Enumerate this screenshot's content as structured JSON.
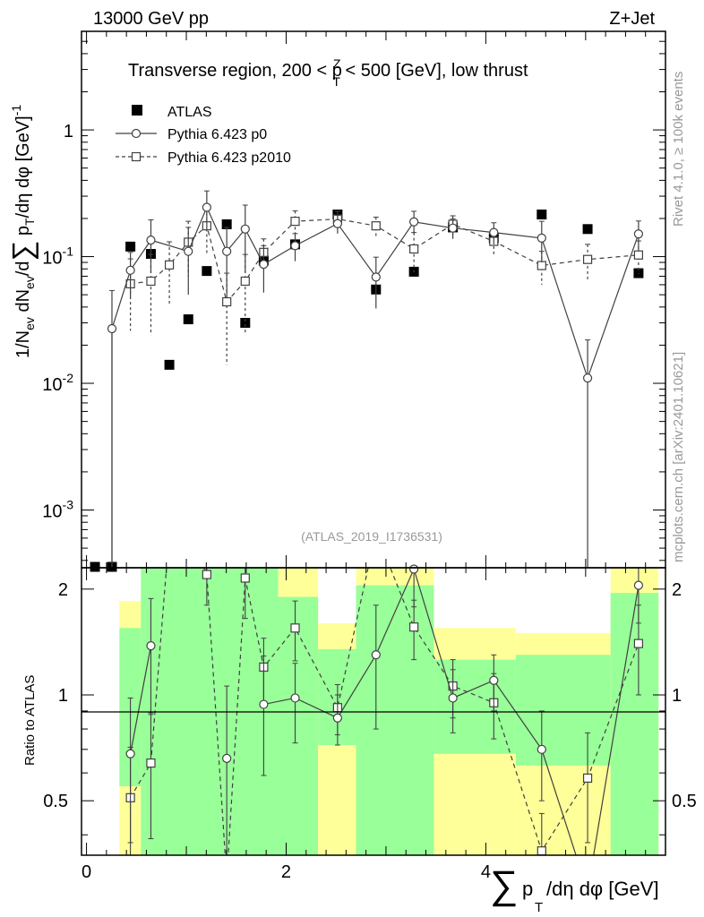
{
  "header": {
    "energy": "13000 GeV pp",
    "process": "Z+Jet"
  },
  "side": {
    "rivet": "Rivet 4.1.0, ≥ 100k events",
    "source": "mcplots.cern.ch [arXiv:2401.10621]"
  },
  "chart_data": {
    "type": "scatter",
    "title": "Transverse region, 200 < pTZ < 500 [GeV], low thrust",
    "title_parts": {
      "before": "Transverse region, 200 < p",
      "sup": "Z",
      "sub": "T",
      "after": " < 500 [GeV], low thrust"
    },
    "analysis_id": "(ATLAS_2019_I1736531)",
    "xlabel": "∑ pT/dη dφ [GeV]",
    "xlabel_parts": {
      "sum": "∑",
      "p": "p",
      "sub": "T",
      "rest": "/dη dφ [GeV]"
    },
    "ylabel": "1/Nev dNev/d ∑ pT/dη dφ [GeV]^-1",
    "ylabel_parts": {
      "a": "1/N",
      "ev": "ev",
      "b": " dN",
      "c": "/d",
      "sum": "∑",
      "p": " p",
      "d": "/dη dφ  [GeV]",
      "sup": "-1"
    },
    "ratio_ylabel": "Ratio to ATLAS",
    "xlim": [
      -0.05,
      5.8
    ],
    "ylim": [
      0.00035,
      6.0
    ],
    "ratio_ylim": [
      0.35,
      2.3
    ],
    "x_ticks": [
      "0",
      "2",
      "4"
    ],
    "y_ticks": [
      {
        "base": "10",
        "exp": "-3"
      },
      {
        "base": "10",
        "exp": "-2"
      },
      {
        "base": "10",
        "exp": "-1"
      },
      {
        "base": "1",
        "exp": ""
      }
    ],
    "ratio_ticks": [
      "0.5",
      "1",
      "2"
    ],
    "legend": [
      "ATLAS",
      "Pythia 6.423 p0",
      "Pythia 6.423 p2010"
    ],
    "legend_position": "top-left",
    "series": [
      {
        "name": "ATLAS",
        "marker": "filled-square",
        "x": [
          0.085,
          0.255,
          0.44,
          0.645,
          0.83,
          1.02,
          1.205,
          1.405,
          1.59,
          1.775,
          2.09,
          2.515,
          2.9,
          3.28,
          3.67,
          4.08,
          4.56,
          5.02,
          5.53
        ],
        "y": [
          0.0003,
          0.0003,
          0.12,
          0.105,
          0.014,
          0.032,
          0.077,
          0.18,
          0.03,
          0.093,
          0.125,
          0.215,
          0.055,
          0.076,
          0.17,
          0.14,
          0.215,
          0.165,
          0.074
        ]
      },
      {
        "name": "Pythia 6.423 p0",
        "marker": "open-circle",
        "line": "solid",
        "x": [
          0.255,
          0.44,
          0.645,
          1.02,
          1.205,
          1.405,
          1.59,
          1.775,
          2.09,
          2.515,
          2.9,
          3.28,
          3.67,
          4.08,
          4.56,
          5.02,
          5.53
        ],
        "y": [
          0.027,
          0.078,
          0.135,
          0.11,
          0.245,
          0.11,
          0.165,
          0.087,
          0.122,
          0.182,
          0.069,
          0.188,
          0.168,
          0.155,
          0.14,
          0.011,
          0.151
        ],
        "err": [
          0.027,
          0.03,
          0.06,
          0.06,
          0.085,
          0.06,
          0.09,
          0.035,
          0.03,
          0.03,
          0.03,
          0.04,
          0.03,
          0.03,
          0.05,
          0.011,
          0.04
        ],
        "ratio": [
          null,
          0.68,
          1.38,
          null,
          null,
          0.66,
          null,
          0.94,
          0.98,
          0.86,
          1.3,
          2.28,
          0.98,
          1.1,
          0.7,
          0.07,
          2.05
        ],
        "ratio_err": [
          null,
          0.3,
          0.5,
          null,
          null,
          0.4,
          null,
          0.35,
          0.25,
          0.14,
          0.5,
          0.5,
          0.2,
          0.2,
          0.2,
          0.1,
          0.45
        ]
      },
      {
        "name": "Pythia 6.423 p2010",
        "marker": "open-square",
        "line": "dashed",
        "x": [
          0.44,
          0.645,
          0.83,
          1.02,
          1.205,
          1.405,
          1.59,
          1.775,
          2.09,
          2.515,
          2.9,
          3.28,
          3.67,
          4.08,
          4.56,
          5.02,
          5.53
        ],
        "y": [
          0.061,
          0.064,
          0.086,
          0.13,
          0.175,
          0.044,
          0.064,
          0.108,
          0.19,
          0.198,
          0.175,
          0.115,
          0.18,
          0.132,
          0.085,
          0.095,
          0.103
        ],
        "err": [
          0.035,
          0.04,
          0.045,
          0.06,
          0.07,
          0.03,
          0.04,
          0.03,
          0.04,
          0.03,
          0.03,
          0.04,
          0.03,
          0.03,
          0.025,
          0.03,
          0.03
        ],
        "ratio": [
          0.51,
          0.64,
          3.5,
          3.0,
          2.2,
          0.3,
          2.15,
          1.2,
          1.55,
          0.92,
          3.2,
          1.56,
          1.06,
          0.95,
          0.36,
          0.58,
          1.4
        ],
        "ratio_err": [
          0.2,
          0.25,
          0.5,
          0.5,
          0.4,
          0.2,
          0.5,
          0.25,
          0.3,
          0.15,
          0.5,
          0.3,
          0.2,
          0.2,
          0.1,
          0.2,
          0.4
        ]
      }
    ],
    "ratio_bands": [
      {
        "x0": 0.33,
        "x1": 0.545,
        "g": [
          0.55,
          1.55
        ],
        "y": [
          0.35,
          1.85
        ]
      },
      {
        "x0": 0.545,
        "x1": 0.735,
        "g": [
          0.35,
          2.3
        ],
        "y": [
          0.35,
          2.3
        ]
      },
      {
        "x0": 0.735,
        "x1": 1.92,
        "g": [
          0.35,
          2.3
        ],
        "y": [
          0.35,
          2.3
        ]
      },
      {
        "x0": 1.92,
        "x1": 2.32,
        "g": [
          0.35,
          1.9
        ],
        "y": [
          0.35,
          2.3
        ]
      },
      {
        "x0": 2.32,
        "x1": 2.7,
        "g": [
          0.72,
          1.35
        ],
        "y": [
          0.35,
          1.6
        ]
      },
      {
        "x0": 2.7,
        "x1": 3.48,
        "g": [
          0.35,
          2.05
        ],
        "y": [
          0.35,
          2.3
        ]
      },
      {
        "x0": 3.48,
        "x1": 4.3,
        "g": [
          0.68,
          1.26
        ],
        "y": [
          0.35,
          1.55
        ]
      },
      {
        "x0": 4.3,
        "x1": 5.25,
        "g": [
          0.63,
          1.3
        ],
        "y": [
          0.35,
          1.5
        ]
      },
      {
        "x0": 5.25,
        "x1": 5.73,
        "g": [
          0.35,
          1.95
        ],
        "y": [
          0.35,
          2.3
        ]
      }
    ]
  }
}
